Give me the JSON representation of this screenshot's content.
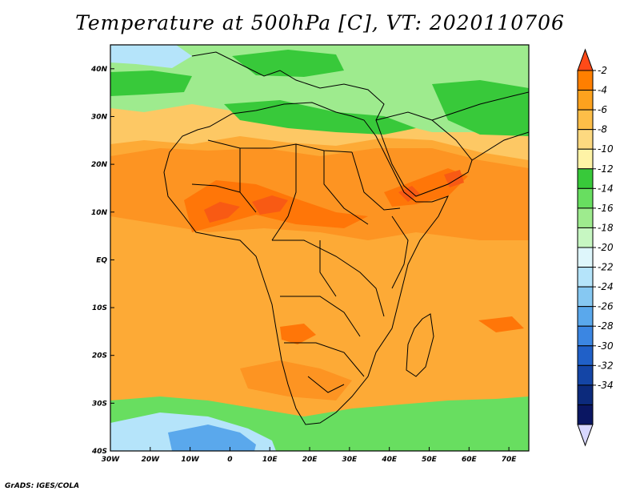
{
  "title": "Temperature at 500hPa [C], VT: 2020110706",
  "footer": "GrADS: IGES/COLA",
  "map": {
    "lon_ticks": [
      "30W",
      "20W",
      "10W",
      "0",
      "10E",
      "20E",
      "30E",
      "40E",
      "50E",
      "60E",
      "70E"
    ],
    "lat_ticks": [
      "40N",
      "30N",
      "20N",
      "10N",
      "EQ",
      "10S",
      "20S",
      "30S",
      "40S"
    ],
    "lon_range": [
      -30,
      75
    ],
    "lat_range": [
      -40,
      45
    ]
  },
  "colorbar": {
    "labels": [
      "-2",
      "-4",
      "-6",
      "-8",
      "-10",
      "-12",
      "-14",
      "-16",
      "-18",
      "-20",
      "-22",
      "-24",
      "-26",
      "-28",
      "-30",
      "-32",
      "-34"
    ],
    "colors": [
      "#ff4a18",
      "#ff7f00",
      "#fda21e",
      "#fdbe48",
      "#fdd980",
      "#fef3a6",
      "#38c93a",
      "#68de60",
      "#9eeb8e",
      "#c7f7c2",
      "#def6fb",
      "#b5e4fa",
      "#86c8f2",
      "#5aa8ec",
      "#3b86e2",
      "#2060c8",
      "#1445a6",
      "#0c2a7c",
      "#0a1662",
      "#d8d8ff"
    ]
  },
  "fill_colors": {
    "ocean_base": "#fdaa36",
    "land_hot": "#fd9422",
    "hot_core": "#ff7608",
    "hottest": "#f85a14",
    "north_warm": "#fdc864",
    "north_cool": "#9eeb8e",
    "north_cold": "#38c93a",
    "south_cool": "#68de60",
    "south_cold": "#b5e4fa",
    "south_colder": "#5aa8ec",
    "border": "#000000"
  }
}
